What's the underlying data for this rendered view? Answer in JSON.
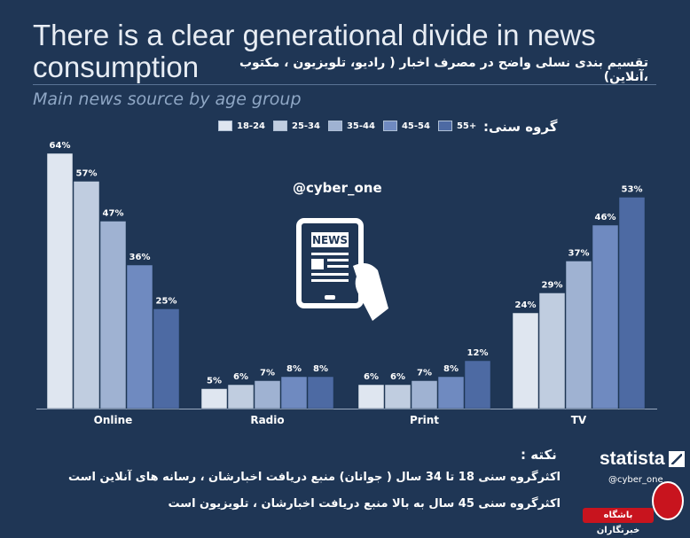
{
  "header": {
    "title": "There is a clear generational divide in news consumption",
    "title_fa": "تقسیم بندی نسلی واضح در مصرف اخبار ( رادیو، تلویزیون ، مکتوب ،آنلاین)",
    "subtitle": "Main news source by age group"
  },
  "legend": {
    "title": "گروه سنی:",
    "items": [
      {
        "label": "18-24",
        "color": "#dfe6f0"
      },
      {
        "label": "25-34",
        "color": "#c0cde0"
      },
      {
        "label": "35-44",
        "color": "#9fb2d2"
      },
      {
        "label": "45-54",
        "color": "#6f8ac0"
      },
      {
        "label": "55+",
        "color": "#4d6aa3"
      }
    ]
  },
  "watermark": "@cyber_one",
  "chart_data": {
    "type": "bar",
    "title": "There is a clear generational divide in news consumption",
    "subtitle": "Main news source by age group",
    "categories": [
      "Online",
      "Radio",
      "Print",
      "TV"
    ],
    "series": [
      {
        "name": "18-24",
        "values": [
          64,
          5,
          6,
          24
        ],
        "color": "#dfe6f0"
      },
      {
        "name": "25-34",
        "values": [
          57,
          6,
          6,
          29
        ],
        "color": "#c0cde0"
      },
      {
        "name": "35-44",
        "values": [
          47,
          7,
          7,
          37
        ],
        "color": "#9fb2d2"
      },
      {
        "name": "45-54",
        "values": [
          36,
          8,
          8,
          46
        ],
        "color": "#6f8ac0"
      },
      {
        "name": "55+",
        "values": [
          25,
          8,
          12,
          53
        ],
        "color": "#4d6aa3"
      }
    ],
    "value_suffix": "%",
    "ylim": [
      0,
      64
    ],
    "grid": false,
    "legend_position": "top"
  },
  "note": {
    "title": "نکته :",
    "line1": "اکثرگروه سنی 18 تا 34 سال ( جوانان) منبع دریافت اخبارشان ، رسانه های آنلاین است",
    "line2": "اکثرگروه سنی 45 سال به بالا  منبع دریافت اخبارشان ، تلویزیون است"
  },
  "branding": {
    "statista": "statista",
    "handle": "@cyber_one",
    "badge": "باشگاه خبرنگاران"
  }
}
